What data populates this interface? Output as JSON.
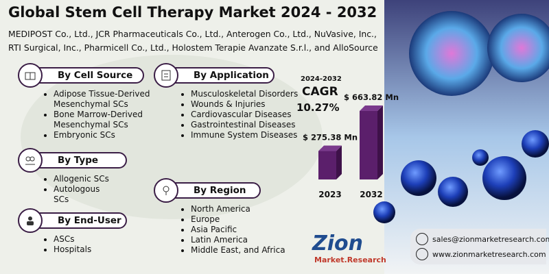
{
  "header": {
    "title": "Global Stem Cell Therapy Market 2024 - 2032",
    "subtitle_lines": [
      "MEDIPOST Co., Ltd., JCR Pharmaceuticals Co., Ltd., Anterogen Co., Ltd., NuVasive, Inc.,",
      "RTI Surgical, Inc., Pharmicell Co., Ltd., Holostem Terapie Avanzate S.r.l., and AlloSource"
    ]
  },
  "segments": [
    {
      "title": "By Cell Source",
      "items": [
        "Adipose Tissue-Derived Mesenchymal SCs",
        "Bone Marrow-Derived Mesenchymal SCs",
        "Embryonic SCs"
      ]
    },
    {
      "title": "By Application",
      "items": [
        "Musculoskeletal Disorders",
        "Wounds & Injuries",
        "Cardiovascular Diseases",
        "Gastrointestinal Diseases",
        "Immune System Diseases"
      ]
    },
    {
      "title": "By Type",
      "items": [
        "Allogenic SCs",
        "Autologous SCs"
      ]
    },
    {
      "title": "By Region",
      "items": [
        "North America",
        "Europe",
        "Asia Pacific",
        "Latin America",
        "Middle East, and Africa"
      ]
    },
    {
      "title": "By End-User",
      "items": [
        "ASCs",
        "Hospitals"
      ]
    }
  ],
  "cagr": {
    "period": "2024-2032",
    "label": "CAGR",
    "value": "10.27%"
  },
  "chart_data": {
    "type": "bar",
    "categories": [
      "2023",
      "2032"
    ],
    "values": [
      275.38,
      663.82
    ],
    "value_labels": [
      "$ 275.38 Mn",
      "$ 663.82 Mn"
    ],
    "color": "#5b1f6b"
  },
  "logo": {
    "name": "Zion",
    "tagline": "Market.Research"
  },
  "contact": {
    "email": "sales@zionmarketresearch.com",
    "website": "www.zionmarketresearch.com"
  }
}
